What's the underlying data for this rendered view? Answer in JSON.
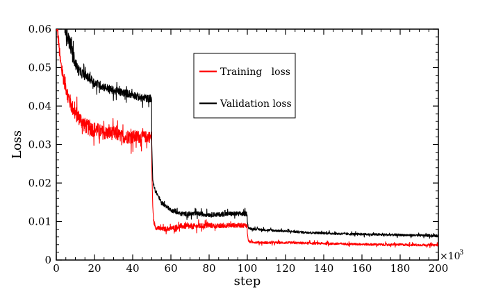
{
  "chart_data": {
    "type": "line",
    "title": "",
    "xlabel": "step",
    "ylabel": "Loss",
    "x_multiplier_label": "×10",
    "x_multiplier_exp": "3",
    "xlim": [
      0,
      200
    ],
    "ylim": [
      0,
      0.06
    ],
    "x_ticks": [
      0,
      20,
      40,
      60,
      80,
      100,
      120,
      140,
      160,
      180,
      200
    ],
    "x_tick_labels": [
      "0",
      "20",
      "40",
      "60",
      "80",
      "100",
      "120",
      "140",
      "160",
      "180",
      "200"
    ],
    "y_ticks": [
      0,
      0.01,
      0.02,
      0.03,
      0.04,
      0.05,
      0.06
    ],
    "y_tick_labels": [
      "0",
      "0.01",
      "0.02",
      "0.03",
      "0.04",
      "0.05",
      "0.06"
    ],
    "grid": false,
    "legend_position": "top-center",
    "series": [
      {
        "name": "Training   loss",
        "color": "#ff0000",
        "x": [
          0,
          1,
          2,
          3,
          4,
          5,
          6,
          8,
          10,
          12,
          15,
          18,
          20,
          25,
          30,
          35,
          40,
          45,
          48,
          49.9,
          50,
          50.5,
          51,
          52,
          55,
          60,
          65,
          70,
          75,
          80,
          85,
          90,
          95,
          99.9,
          100,
          100.5,
          101,
          105,
          110,
          120,
          130,
          140,
          150,
          160,
          170,
          180,
          190,
          200
        ],
        "y": [
          0.062,
          0.058,
          0.052,
          0.049,
          0.047,
          0.045,
          0.043,
          0.04,
          0.038,
          0.037,
          0.035,
          0.034,
          0.034,
          0.033,
          0.033,
          0.032,
          0.032,
          0.032,
          0.032,
          0.032,
          0.024,
          0.014,
          0.01,
          0.0085,
          0.008,
          0.0082,
          0.0088,
          0.0087,
          0.0088,
          0.009,
          0.0088,
          0.009,
          0.009,
          0.009,
          0.007,
          0.0052,
          0.0047,
          0.0046,
          0.0045,
          0.0045,
          0.0044,
          0.0043,
          0.0042,
          0.0041,
          0.004,
          0.004,
          0.0039,
          0.0039
        ],
        "noise": [
          0.002,
          0.002,
          0.002,
          0.002,
          0.002,
          0.002,
          0.002,
          0.002,
          0.002,
          0.002,
          0.002,
          0.002,
          0.002,
          0.0018,
          0.0018,
          0.0016,
          0.0018,
          0.0015,
          0.0015,
          0.0015,
          0.0,
          0.0,
          0.0006,
          0.0006,
          0.0006,
          0.0006,
          0.0007,
          0.0007,
          0.0007,
          0.0007,
          0.0006,
          0.0006,
          0.0006,
          0.0006,
          0.0,
          0.0002,
          0.0003,
          0.0003,
          0.0003,
          0.0003,
          0.0003,
          0.0003,
          0.0003,
          0.0003,
          0.0003,
          0.0003,
          0.0003,
          0.0003
        ]
      },
      {
        "name": "Validation loss",
        "color": "#000000",
        "x": [
          4,
          5,
          6,
          8,
          10,
          12,
          15,
          18,
          20,
          25,
          30,
          35,
          40,
          45,
          48,
          49.9,
          50,
          50.5,
          51,
          52,
          55,
          60,
          65,
          70,
          75,
          80,
          85,
          90,
          95,
          99.9,
          100,
          100.5,
          101,
          105,
          110,
          120,
          130,
          140,
          150,
          160,
          170,
          180,
          190,
          200
        ],
        "y": [
          0.062,
          0.06,
          0.058,
          0.055,
          0.051,
          0.049,
          0.048,
          0.047,
          0.046,
          0.045,
          0.044,
          0.0435,
          0.043,
          0.042,
          0.042,
          0.042,
          0.03,
          0.021,
          0.019,
          0.018,
          0.015,
          0.013,
          0.012,
          0.012,
          0.012,
          0.0118,
          0.0118,
          0.012,
          0.012,
          0.012,
          0.01,
          0.0085,
          0.0082,
          0.008,
          0.0078,
          0.0075,
          0.0072,
          0.007,
          0.0068,
          0.0067,
          0.0066,
          0.0065,
          0.0064,
          0.0063
        ],
        "noise": [
          0.002,
          0.002,
          0.002,
          0.002,
          0.0016,
          0.0014,
          0.0012,
          0.0012,
          0.0012,
          0.0011,
          0.0011,
          0.001,
          0.001,
          0.001,
          0.001,
          0.001,
          0.0,
          0.0,
          0.0005,
          0.0005,
          0.0005,
          0.0005,
          0.0006,
          0.0006,
          0.0006,
          0.0006,
          0.0006,
          0.0006,
          0.0006,
          0.0006,
          0.0,
          0.0003,
          0.0003,
          0.0003,
          0.0003,
          0.0003,
          0.0003,
          0.0003,
          0.0003,
          0.0003,
          0.0003,
          0.0003,
          0.0003,
          0.0003
        ]
      }
    ]
  }
}
